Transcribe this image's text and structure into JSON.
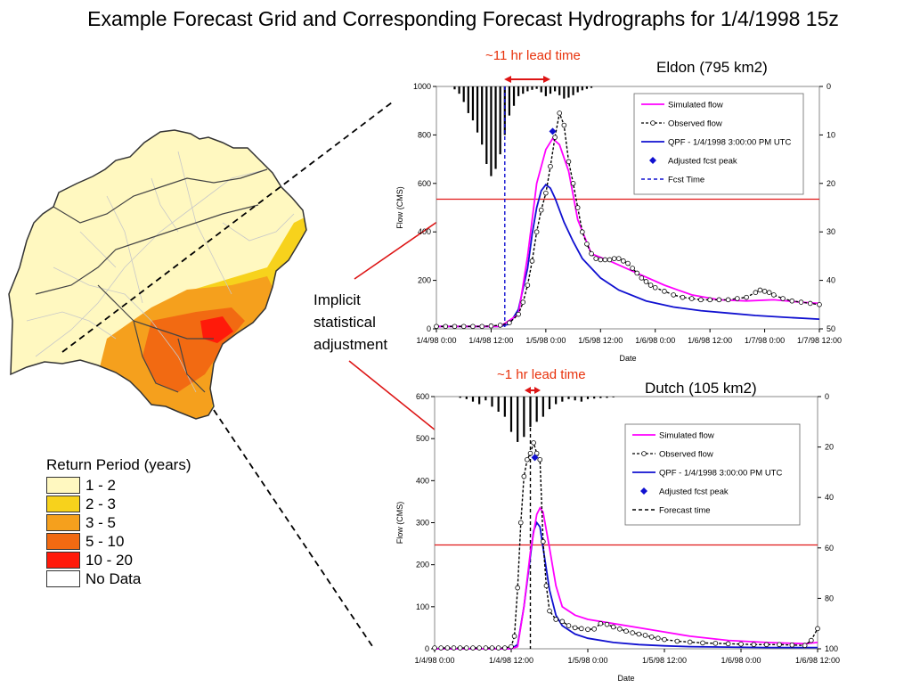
{
  "title": "Example Forecast Grid and Corresponding Forecast Hydrographs for 1/4/1998 15z",
  "implicit_label": [
    "Implicit",
    "statistical",
    "adjustment"
  ],
  "return_period_legend": {
    "title": "Return Period (years)",
    "items": [
      {
        "label": "1 - 2",
        "color": "#fff8c0"
      },
      {
        "label": "2 - 3",
        "color": "#f7d21c"
      },
      {
        "label": "3 - 5",
        "color": "#f5a01d"
      },
      {
        "label": "5 - 10",
        "color": "#f26a12"
      },
      {
        "label": "10 - 20",
        "color": "#ff1a0a"
      },
      {
        "label": "No Data",
        "color": "#ffffff"
      }
    ]
  },
  "chart_data": [
    {
      "type": "line",
      "basin": "Eldon (795 km2)",
      "lead_time_label": "~11 hr lead time",
      "xlabel": "Date",
      "ylabel": "Flow (CMS)",
      "ylim": [
        0,
        1000
      ],
      "yticks": [
        0,
        200,
        400,
        600,
        800,
        1000
      ],
      "y2lim": [
        0,
        50
      ],
      "y2ticks": [
        0,
        10,
        20,
        30,
        40,
        50
      ],
      "xlim": [
        0,
        84
      ],
      "xticks": [
        0,
        12,
        24,
        36,
        48,
        60,
        72,
        84
      ],
      "xticklabels": [
        "1/4/98 0:00",
        "1/4/98 12:00",
        "1/5/98 0:00",
        "1/5/98 12:00",
        "1/6/98 0:00",
        "1/6/98 12:00",
        "1/7/98 0:00",
        "1/7/98 12:00"
      ],
      "threshold_flow": 535,
      "forecast_time_hours": 15,
      "adjusted_peak": {
        "x": 25.5,
        "y": 815
      },
      "legend": [
        "Simulated flow",
        "Observed flow",
        "QPF - 1/4/1998 3:00:00 PM UTC",
        "Adjusted fcst peak",
        "Fcst Time"
      ],
      "series": [
        {
          "name": "Simulated flow",
          "color": "#ff00ff",
          "x": [
            0,
            14,
            18,
            20,
            22,
            24,
            25.5,
            27,
            29,
            31,
            34,
            38,
            44,
            50,
            56,
            62,
            68,
            74,
            80,
            84
          ],
          "y": [
            10,
            10,
            60,
            300,
            600,
            740,
            785,
            760,
            650,
            450,
            310,
            280,
            230,
            180,
            140,
            120,
            115,
            120,
            110,
            105
          ]
        },
        {
          "name": "Observed flow",
          "color": "#000000",
          "x": [
            0,
            2,
            4,
            6,
            8,
            10,
            12,
            14,
            16,
            18,
            19,
            20,
            21,
            22,
            23,
            24,
            25,
            26,
            27,
            28,
            29,
            30,
            31,
            32,
            33,
            34,
            35,
            36,
            37,
            38,
            39,
            40,
            41,
            42,
            43,
            44,
            45,
            46,
            47,
            48,
            50,
            52,
            54,
            56,
            58,
            60,
            62,
            64,
            66,
            68,
            70,
            71,
            72,
            73,
            74,
            76,
            78,
            80,
            82,
            84
          ],
          "y": [
            10,
            10,
            10,
            10,
            10,
            10,
            12,
            15,
            25,
            60,
            110,
            180,
            280,
            400,
            490,
            560,
            670,
            790,
            890,
            840,
            690,
            600,
            500,
            400,
            350,
            310,
            290,
            285,
            285,
            285,
            290,
            290,
            280,
            270,
            250,
            230,
            210,
            195,
            180,
            170,
            155,
            140,
            130,
            125,
            120,
            120,
            120,
            120,
            125,
            130,
            150,
            160,
            155,
            150,
            140,
            125,
            115,
            110,
            105,
            100
          ]
        },
        {
          "name": "QPF - 1/4/1998 3:00:00 PM UTC",
          "color": "#1010d0",
          "x": [
            0,
            14,
            16,
            18,
            20,
            21,
            22,
            23,
            24,
            25,
            26,
            28,
            30,
            32,
            36,
            40,
            46,
            52,
            58,
            64,
            70,
            76,
            84
          ],
          "y": [
            10,
            10,
            20,
            80,
            250,
            390,
            500,
            570,
            595,
            580,
            540,
            440,
            360,
            290,
            210,
            160,
            115,
            90,
            75,
            65,
            55,
            48,
            40
          ]
        }
      ],
      "precip_bars": {
        "x": [
          4,
          5,
          6,
          7,
          8,
          9,
          10,
          11,
          12,
          13,
          14,
          15,
          16,
          17,
          18,
          19,
          20,
          21,
          22,
          23,
          24,
          25,
          26,
          27,
          28,
          29,
          30,
          31,
          32,
          33,
          34
        ],
        "y": [
          0.6,
          1.5,
          3.2,
          5.5,
          7,
          9.5,
          12,
          16,
          18.5,
          17,
          14,
          10,
          6,
          4,
          2,
          1.5,
          1,
          0.7,
          0.5,
          1.2,
          2,
          1.5,
          1,
          1.8,
          2.5,
          2.3,
          1.8,
          1.2,
          0.8,
          0.5,
          0.3
        ]
      }
    },
    {
      "type": "line",
      "basin": "Dutch (105 km2)",
      "lead_time_label": "~1 hr lead time",
      "xlabel": "Date",
      "ylabel": "Flow (CMS)",
      "ylim": [
        0,
        600
      ],
      "yticks": [
        0,
        100,
        200,
        300,
        400,
        500,
        600
      ],
      "y2lim": [
        0,
        100
      ],
      "y2ticks": [
        0,
        20,
        40,
        60,
        80,
        100
      ],
      "xlim": [
        0,
        60
      ],
      "xticks": [
        0,
        12,
        24,
        36,
        48,
        60
      ],
      "xticklabels": [
        "1/4/98 0:00",
        "1/4/98 12:00",
        "1/5/98 0:00",
        "1/5/98 12:00",
        "1/6/98 0:00",
        "1/6/98 12:00"
      ],
      "threshold_flow": 247,
      "forecast_time_hours": 15,
      "adjusted_peak": {
        "x": 15.7,
        "y": 455
      },
      "legend": [
        "Simulated flow",
        "Observed flow",
        "QPF - 1/4/1998 3:00:00 PM UTC",
        "Adjusted fcst peak",
        "Forecast time"
      ],
      "series": [
        {
          "name": "Simulated flow",
          "color": "#ff00ff",
          "x": [
            0,
            12,
            13,
            14,
            15,
            16,
            16.5,
            17,
            18,
            19,
            20,
            22,
            24,
            28,
            32,
            36,
            40,
            46,
            52,
            58,
            60
          ],
          "y": [
            0,
            0,
            5,
            100,
            230,
            320,
            335,
            325,
            240,
            150,
            100,
            80,
            70,
            60,
            50,
            40,
            30,
            20,
            15,
            12,
            15
          ]
        },
        {
          "name": "Observed flow",
          "color": "#000000",
          "x": [
            0,
            1,
            2,
            3,
            4,
            5,
            6,
            7,
            8,
            9,
            10,
            11,
            12,
            12.5,
            13,
            13.5,
            14,
            14.5,
            15,
            15.5,
            16,
            16.5,
            17,
            17.5,
            18,
            19,
            20,
            21,
            22,
            23,
            24,
            25,
            26,
            27,
            28,
            29,
            30,
            31,
            32,
            33,
            34,
            35,
            36,
            38,
            40,
            42,
            44,
            46,
            48,
            50,
            52,
            54,
            56,
            58,
            59,
            60
          ],
          "y": [
            2,
            2,
            2,
            2,
            2,
            2,
            2,
            2,
            2,
            2,
            2,
            2,
            5,
            30,
            145,
            300,
            410,
            450,
            465,
            490,
            465,
            450,
            255,
            150,
            90,
            70,
            65,
            55,
            50,
            48,
            46,
            47,
            60,
            58,
            52,
            47,
            42,
            38,
            35,
            32,
            28,
            25,
            22,
            18,
            16,
            14,
            13,
            12,
            11,
            10,
            10,
            10,
            9,
            8,
            20,
            48
          ]
        },
        {
          "name": "QPF - 1/4/1998 3:00:00 PM UTC",
          "color": "#1010d0",
          "x": [
            0,
            12,
            13,
            14,
            15,
            15.5,
            16,
            16.5,
            17,
            18,
            19,
            20,
            22,
            24,
            28,
            32,
            36,
            40,
            46,
            52,
            58,
            60
          ],
          "y": [
            0,
            0,
            10,
            100,
            220,
            280,
            300,
            290,
            240,
            140,
            80,
            55,
            35,
            25,
            15,
            10,
            7,
            5,
            4,
            3,
            3,
            3
          ]
        }
      ],
      "precip_bars": {
        "x": [
          4,
          5,
          6,
          7,
          8,
          9,
          10,
          11,
          12,
          13,
          14,
          15,
          16,
          17,
          18,
          19,
          20,
          21,
          22,
          23,
          24,
          25,
          26,
          27,
          28
        ],
        "y": [
          0.5,
          1,
          2,
          3,
          1.5,
          4,
          6,
          8,
          14,
          18,
          16,
          12,
          10,
          8,
          5,
          3,
          2,
          1,
          1.5,
          2,
          1,
          0.8,
          0.6,
          0.5,
          0.3
        ]
      }
    }
  ]
}
